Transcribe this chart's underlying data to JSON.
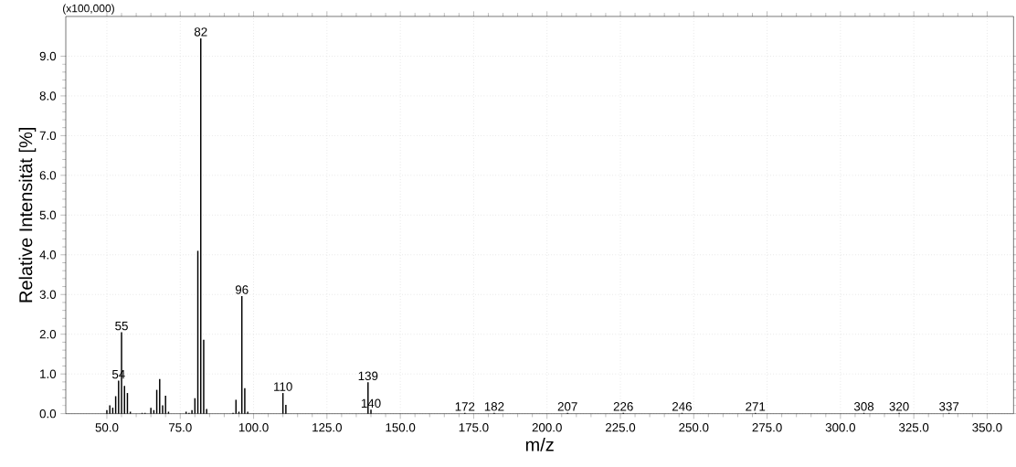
{
  "chart_data": {
    "type": "bar",
    "xlabel": "m/z",
    "ylabel": "Relative Intensität [%]",
    "annotations": [
      "(x100,000)",
      {
        "text": "82",
        "x": 82,
        "y": 9.45
      },
      {
        "text": "96",
        "x": 96,
        "y": 2.96
      },
      {
        "text": "55",
        "x": 55,
        "y": 2.05
      },
      {
        "text": "54",
        "x": 54,
        "y": 0.83
      },
      {
        "text": "110",
        "x": 110,
        "y": 0.52
      },
      {
        "text": "139",
        "x": 139,
        "y": 0.79
      },
      {
        "text": "140",
        "x": 140,
        "y": 0.1
      },
      {
        "text": "172",
        "x": 172,
        "y": 0.02
      },
      {
        "text": "182",
        "x": 182,
        "y": 0.02
      },
      {
        "text": "207",
        "x": 207,
        "y": 0.02
      },
      {
        "text": "226",
        "x": 226,
        "y": 0.02
      },
      {
        "text": "246",
        "x": 246,
        "y": 0.02
      },
      {
        "text": "271",
        "x": 271,
        "y": 0.02
      },
      {
        "text": "308",
        "x": 308,
        "y": 0.02
      },
      {
        "text": "320",
        "x": 320,
        "y": 0.02
      },
      {
        "text": "337",
        "x": 337,
        "y": 0.02
      }
    ],
    "x": [
      50,
      51,
      52,
      53,
      54,
      55,
      56,
      57,
      58,
      62,
      63,
      65,
      66,
      67,
      68,
      69,
      70,
      71,
      77,
      78,
      79,
      80,
      81,
      82,
      83,
      84,
      93,
      94,
      95,
      96,
      97,
      98,
      110,
      111,
      139,
      140,
      172,
      182,
      207,
      226,
      246,
      271,
      308,
      320,
      337
    ],
    "values": [
      0.09,
      0.21,
      0.15,
      0.44,
      0.83,
      2.05,
      0.7,
      0.52,
      0.05,
      0.02,
      0.02,
      0.15,
      0.09,
      0.6,
      0.87,
      0.21,
      0.45,
      0.05,
      0.05,
      0.02,
      0.09,
      0.39,
      4.1,
      9.45,
      1.86,
      0.12,
      0.02,
      0.35,
      0.05,
      2.96,
      0.64,
      0.05,
      0.52,
      0.22,
      0.79,
      0.1,
      0.02,
      0.02,
      0.02,
      0.02,
      0.02,
      0.02,
      0.02,
      0.02,
      0.02
    ],
    "color": "#000000",
    "xlim": [
      36,
      359
    ],
    "xticks": [
      {
        "value": 50,
        "label": "50.0"
      },
      {
        "value": 75,
        "label": "75.0"
      },
      {
        "value": 100,
        "label": "100.0"
      },
      {
        "value": 125,
        "label": "125.0"
      },
      {
        "value": 150,
        "label": "150.0"
      },
      {
        "value": 175,
        "label": "175.0"
      },
      {
        "value": 200,
        "label": "200.0"
      },
      {
        "value": 225,
        "label": "225.0"
      },
      {
        "value": 250,
        "label": "250.0"
      },
      {
        "value": 275,
        "label": "275.0"
      },
      {
        "value": 300,
        "label": "300.0"
      },
      {
        "value": 325,
        "label": "325.0"
      },
      {
        "value": 350,
        "label": "350.0"
      }
    ],
    "ylim": [
      0,
      10
    ],
    "yticks": [
      {
        "value": 0,
        "label": "0.0"
      },
      {
        "value": 1,
        "label": "1.0"
      },
      {
        "value": 2,
        "label": "2.0"
      },
      {
        "value": 3,
        "label": "3.0"
      },
      {
        "value": 4,
        "label": "4.0"
      },
      {
        "value": 5,
        "label": "5.0"
      },
      {
        "value": 6,
        "label": "6.0"
      },
      {
        "value": 7,
        "label": "7.0"
      },
      {
        "value": 8,
        "label": "8.0"
      },
      {
        "value": 9,
        "label": "9.0"
      }
    ],
    "grid": true
  }
}
